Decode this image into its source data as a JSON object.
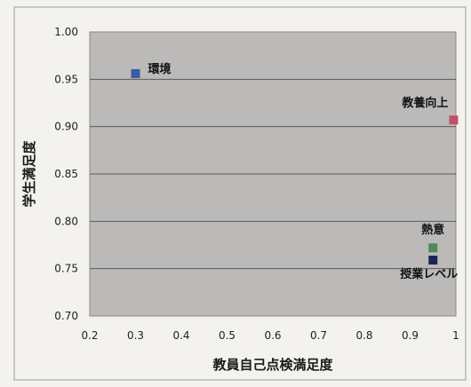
{
  "chart_data": {
    "type": "scatter",
    "title": "",
    "xlabel": "教員自己点検満足度",
    "ylabel": "学生満足度",
    "xlim": [
      0.2,
      1.0
    ],
    "ylim": [
      0.7,
      1.0
    ],
    "x_ticks": [
      "0.2",
      "0.3",
      "0.4",
      "0.5",
      "0.6",
      "0.7",
      "0.8",
      "0.9",
      "1"
    ],
    "y_ticks": [
      "1.00",
      "0.95",
      "0.90",
      "0.85",
      "0.80",
      "0.75",
      "0.70"
    ],
    "grid": "horizontal",
    "points": [
      {
        "label": "環境",
        "x": 0.3,
        "y": 0.956,
        "color": "#3a5aa8"
      },
      {
        "label": "教養向上",
        "x": 0.995,
        "y": 0.907,
        "color": "#c0506a"
      },
      {
        "label": "熱意",
        "x": 0.95,
        "y": 0.772,
        "color": "#4d8a5c"
      },
      {
        "label": "授業レベル",
        "x": 0.95,
        "y": 0.759,
        "color": "#1b2456"
      }
    ]
  }
}
